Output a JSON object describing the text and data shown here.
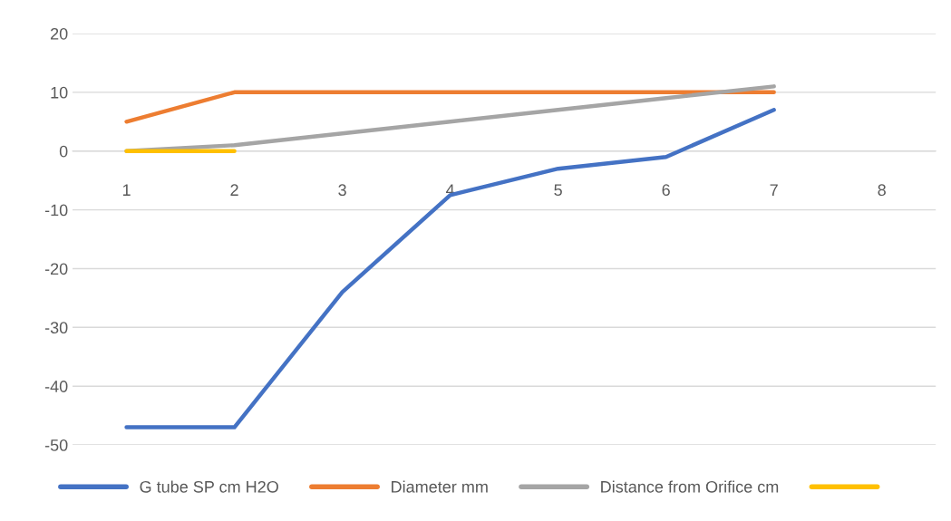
{
  "chart_data": {
    "type": "line",
    "categories": [
      "1",
      "2",
      "3",
      "4",
      "5",
      "6",
      "7",
      "8"
    ],
    "series": [
      {
        "name": "G tube SP cm H2O",
        "color": "#4472c4",
        "values": [
          -47,
          -47,
          -24,
          -7.5,
          -3,
          -1,
          7,
          null
        ]
      },
      {
        "name": "Diameter mm",
        "color": "#ed7d31",
        "values": [
          5,
          10,
          10,
          10,
          10,
          10,
          10,
          null
        ]
      },
      {
        "name": "Distance from Orifice cm",
        "color": "#a5a5a5",
        "values": [
          0,
          1,
          3,
          5,
          7,
          9,
          11,
          null
        ]
      },
      {
        "color": "#ffc000",
        "values": [
          0,
          0,
          null,
          null,
          null,
          null,
          null,
          null
        ]
      }
    ],
    "ylim": [
      -50,
      20
    ],
    "yticks": [
      -50,
      -40,
      -30,
      -20,
      -10,
      0,
      10,
      20
    ],
    "grid": "y",
    "legend": "bottom",
    "marker": "none",
    "line_style": "solid"
  }
}
